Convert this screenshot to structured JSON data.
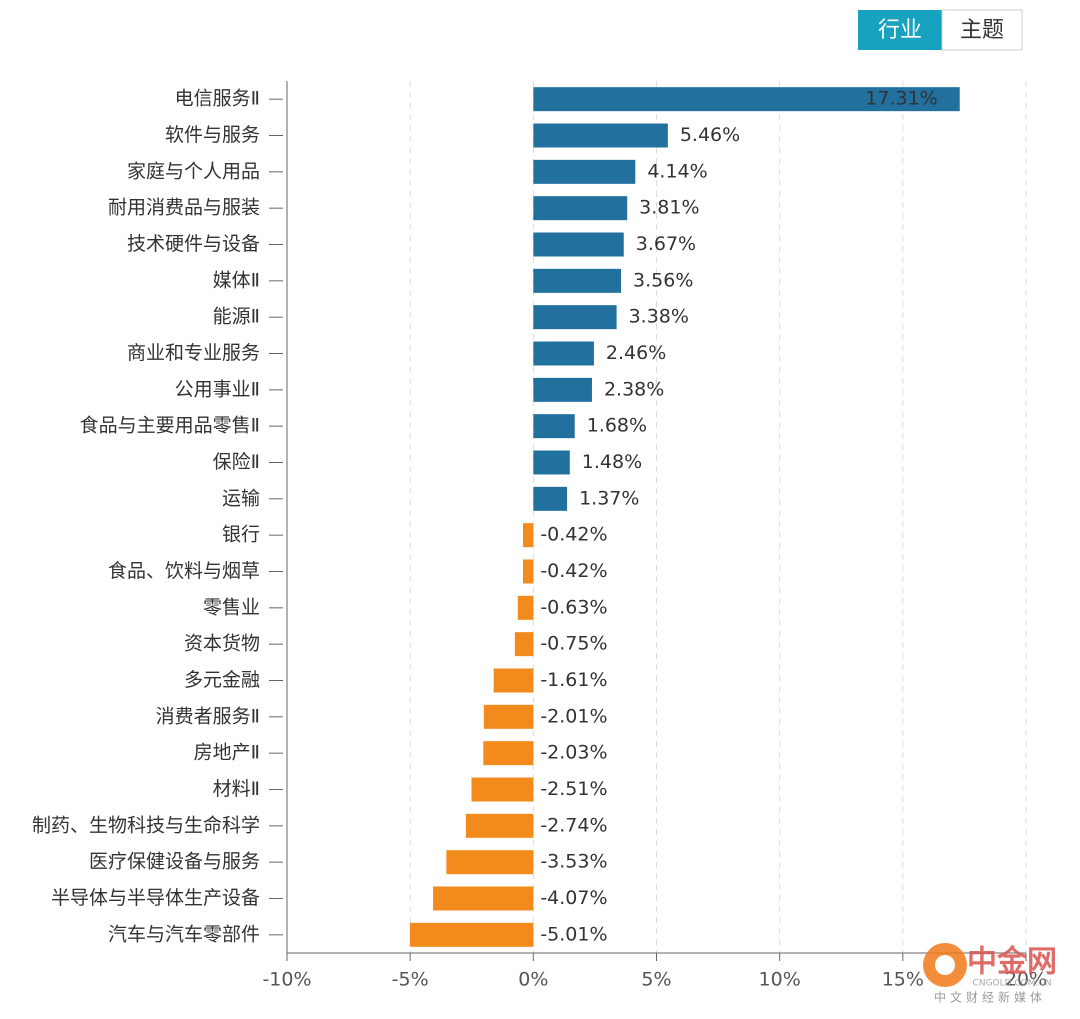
{
  "tabs": [
    "行业",
    "主题"
  ],
  "watermark": {
    "name": "中金网",
    "domain": "CNGOLD.COM.CN",
    "slogan": "中文财经新媒体"
  },
  "chart_data": {
    "type": "bar",
    "orientation": "horizontal",
    "categories": [
      "电信服务Ⅱ",
      "软件与服务",
      "家庭与个人用品",
      "耐用消费品与服装",
      "技术硬件与设备",
      "媒体Ⅱ",
      "能源Ⅱ",
      "商业和专业服务",
      "公用事业Ⅱ",
      "食品与主要用品零售Ⅱ",
      "保险Ⅱ",
      "运输",
      "银行",
      "食品、饮料与烟草",
      "零售业",
      "资本货物",
      "多元金融",
      "消费者服务Ⅱ",
      "房地产Ⅱ",
      "材料Ⅱ",
      "制药、生物科技与生命科学",
      "医疗保健设备与服务",
      "半导体与半导体生产设备",
      "汽车与汽车零部件"
    ],
    "values": [
      17.31,
      5.46,
      4.14,
      3.81,
      3.67,
      3.56,
      3.38,
      2.46,
      2.38,
      1.68,
      1.48,
      1.37,
      -0.42,
      -0.42,
      -0.63,
      -0.75,
      -1.61,
      -2.01,
      -2.03,
      -2.51,
      -2.74,
      -3.53,
      -4.07,
      -5.01
    ],
    "value_labels": [
      "17.31%",
      "5.46%",
      "4.14%",
      "3.81%",
      "3.67%",
      "3.56%",
      "3.38%",
      "2.46%",
      "2.38%",
      "1.68%",
      "1.48%",
      "1.37%",
      "-0.42%",
      "-0.42%",
      "-0.63%",
      "-0.75%",
      "-1.61%",
      "-2.01%",
      "-2.03%",
      "-2.51%",
      "-2.74%",
      "-3.53%",
      "-4.07%",
      "-5.01%"
    ],
    "positive_color": "#21709d",
    "negative_color": "#f28a1c",
    "xlim": [
      -10,
      20
    ],
    "xticks": [
      {
        "value": -10,
        "label": "-10%"
      },
      {
        "value": -5,
        "label": "-5%"
      },
      {
        "value": 0,
        "label": "0%"
      },
      {
        "value": 5,
        "label": "5%"
      },
      {
        "value": 10,
        "label": "10%"
      },
      {
        "value": 15,
        "label": "15%"
      },
      {
        "value": 20,
        "label": "20%"
      }
    ],
    "grid": true
  }
}
